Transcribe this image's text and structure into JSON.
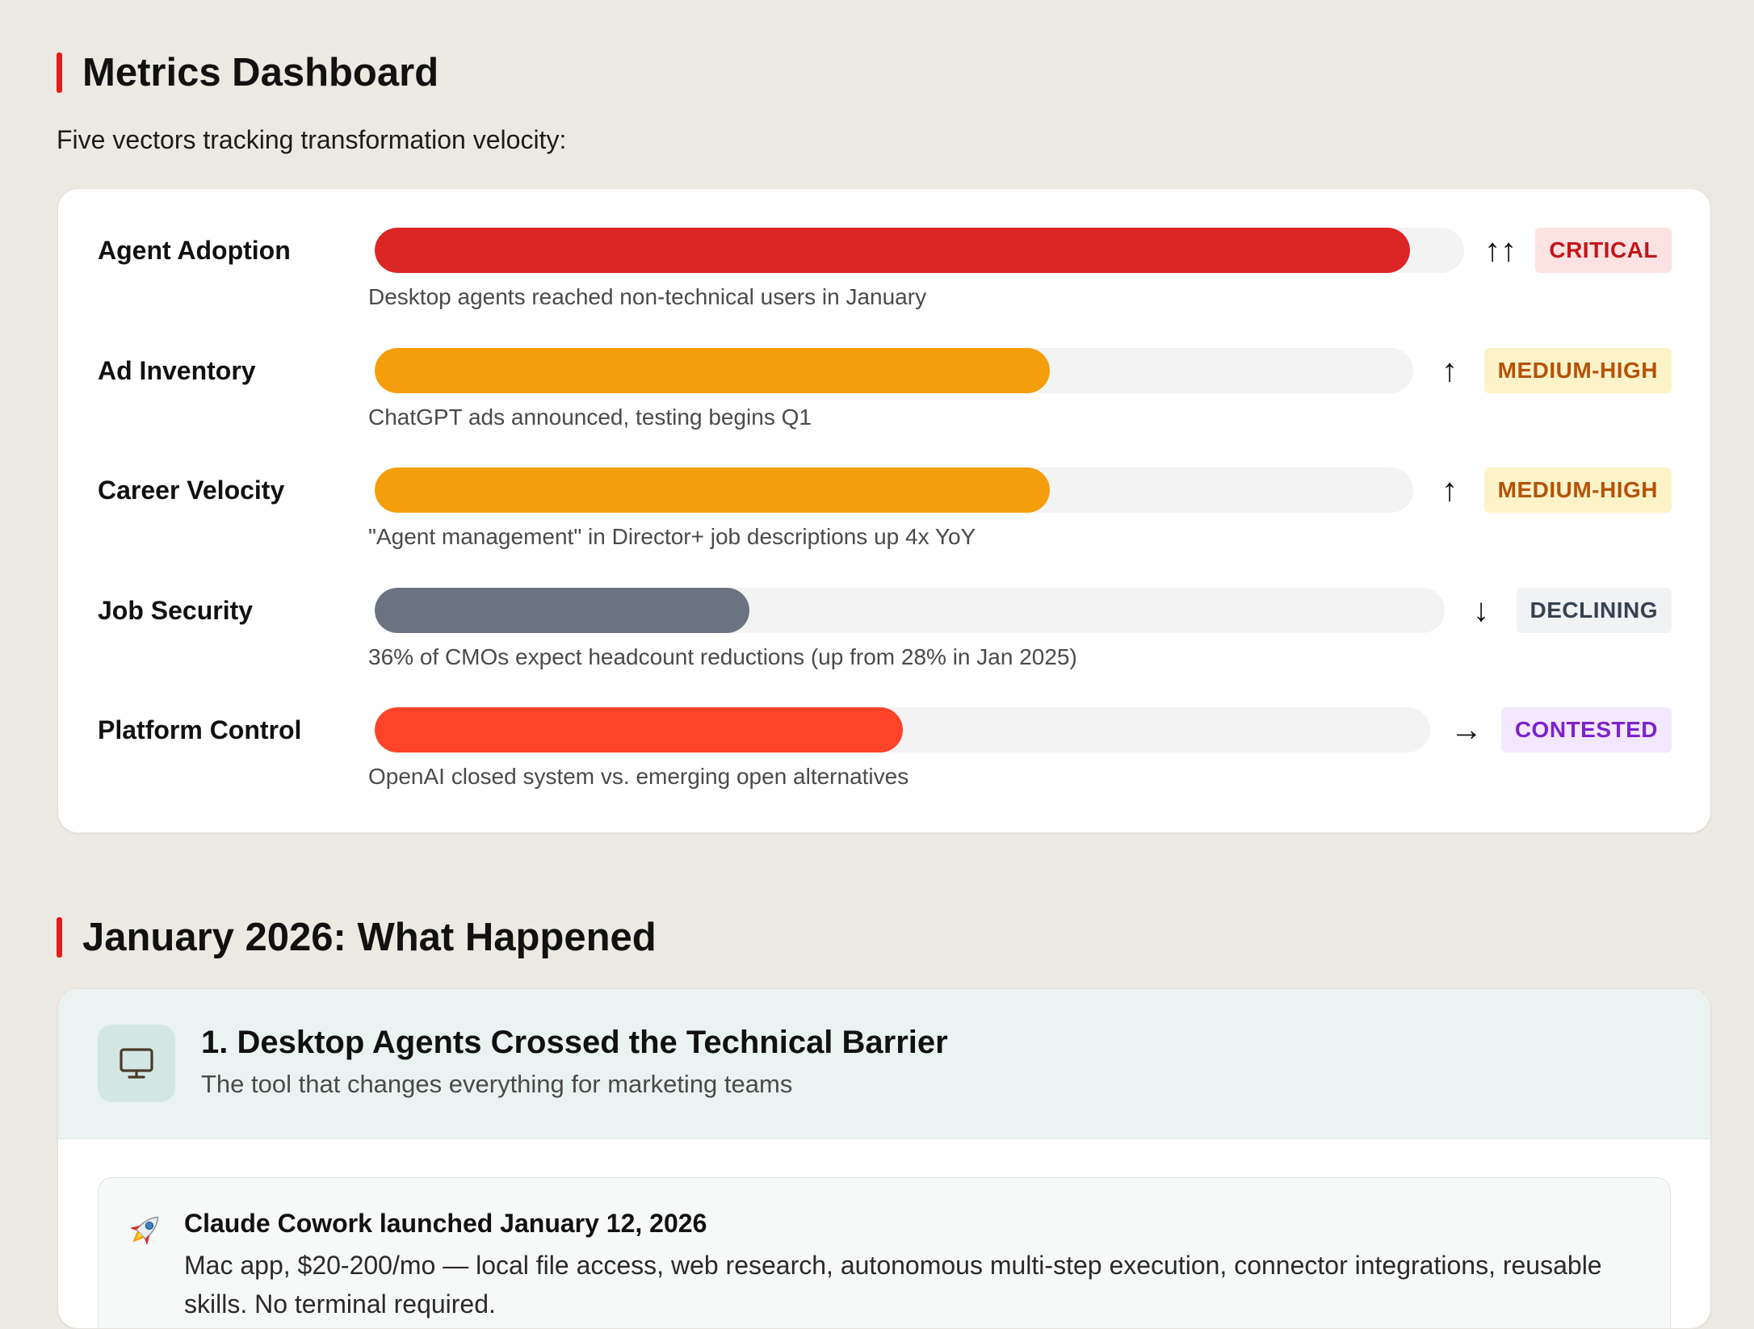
{
  "colors": {
    "accent": "#e11d1d",
    "critical": "#dc2626",
    "warning": "#f59e0b",
    "neutral": "#6b7280",
    "contested": "#ff4328"
  },
  "metrics_section": {
    "title": "Metrics Dashboard",
    "intro": "Five vectors tracking transformation velocity:"
  },
  "metrics": [
    {
      "name": "Agent Adoption",
      "level": 0.95,
      "arrow": "↑↑",
      "status": "CRITICAL",
      "description": "Desktop agents reached non-technical users in January",
      "fill_color": "#dc2626",
      "badge_bg": "#fde2e2",
      "badge_fg": "#c2141a"
    },
    {
      "name": "Ad Inventory",
      "level": 0.65,
      "arrow": "↑",
      "status": "MEDIUM-HIGH",
      "description": "ChatGPT ads announced, testing begins Q1",
      "fill_color": "#f59e0b",
      "badge_bg": "#fdf3c8",
      "badge_fg": "#b45309"
    },
    {
      "name": "Career Velocity",
      "level": 0.65,
      "arrow": "↑",
      "status": "MEDIUM-HIGH",
      "description": "\"Agent management\" in Director+ job descriptions up 4x YoY",
      "fill_color": "#f59e0b",
      "badge_bg": "#fdf3c8",
      "badge_fg": "#b45309"
    },
    {
      "name": "Job Security",
      "level": 0.35,
      "arrow": "↓",
      "status": "DECLINING",
      "description": "36% of CMOs expect headcount reductions (up from 28% in Jan 2025)",
      "fill_color": "#6b7280",
      "badge_bg": "#f1f2f4",
      "badge_fg": "#374151"
    },
    {
      "name": "Platform Control",
      "level": 0.5,
      "arrow": "→",
      "status": "CONTESTED",
      "description": "OpenAI closed system vs. emerging open alternatives",
      "fill_color": "#ff4328",
      "badge_bg": "#f3e8ff",
      "badge_fg": "#7e22ce"
    }
  ],
  "events_section": {
    "title": "January 2026: What Happened"
  },
  "event": {
    "icon": "monitor-icon",
    "title": "1. Desktop Agents Crossed the Technical Barrier",
    "subtitle": "The tool that changes everything for marketing teams",
    "item": {
      "icon": "rocket-icon",
      "title": "Claude Cowork launched January 12, 2026",
      "text": "Mac app, $20-200/mo — local file access, web research, autonomous multi-step execution, connector integrations, reusable skills. No terminal required."
    }
  }
}
